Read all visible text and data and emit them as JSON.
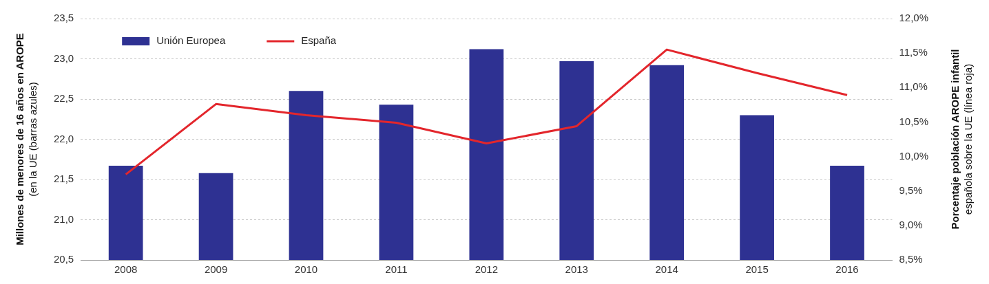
{
  "chart_data": {
    "type": "bar",
    "categories": [
      "2008",
      "2009",
      "2010",
      "2011",
      "2012",
      "2013",
      "2014",
      "2015",
      "2016"
    ],
    "series": [
      {
        "name": "Unión Europea",
        "color": "#2e3192",
        "values": [
          21.67,
          21.58,
          22.6,
          22.43,
          23.12,
          22.97,
          22.92,
          22.3,
          21.67
        ]
      },
      {
        "name": "España",
        "type": "line",
        "axis": "y2",
        "color": "#e3262c",
        "values": [
          9.74,
          10.76,
          10.6,
          10.49,
          10.19,
          10.44,
          11.55,
          11.21,
          10.89
        ]
      }
    ],
    "ylabel": "Millones de menores de 16 años en AROPE\n(en la UE (barras azules)",
    "y2label": "Porcentaje población AROPE infantil\nespañola sobre la UE (línea roja)",
    "ylim": [
      20.5,
      23.5
    ],
    "yticks": [
      {
        "value": 20.5,
        "label": "20,5"
      },
      {
        "value": 21,
        "label": "21,0"
      },
      {
        "value": 21.5,
        "label": "21,5"
      },
      {
        "value": 22,
        "label": "22,0"
      },
      {
        "value": 22.5,
        "label": "22,5"
      },
      {
        "value": 23,
        "label": "23,0"
      },
      {
        "value": 23.5,
        "label": "23,5"
      }
    ],
    "y2lim": [
      8.5,
      12
    ],
    "y2ticks": [
      {
        "value": 8.5,
        "label": "8,5%"
      },
      {
        "value": 9,
        "label": "9,0%"
      },
      {
        "value": 9.5,
        "label": "9,5%"
      },
      {
        "value": 10,
        "label": "10,0%"
      },
      {
        "value": 10.5,
        "label": "10,5%"
      },
      {
        "value": 11,
        "label": "11,0%"
      },
      {
        "value": 11.5,
        "label": "11,5%"
      },
      {
        "value": 12,
        "label": "12,0%"
      }
    ],
    "grid": "y",
    "legend": "top left",
    "marker": "none",
    "line_style": "solid"
  }
}
